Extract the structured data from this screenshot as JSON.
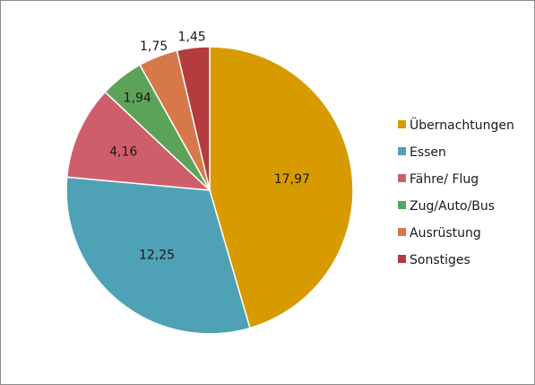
{
  "chart_data": {
    "type": "pie",
    "categories": [
      "Übernachtungen",
      "Essen",
      "Fähre/ Flug",
      "Zug/Auto/Bus",
      "Ausrüstung",
      "Sonstiges"
    ],
    "values": [
      17.97,
      12.25,
      4.16,
      1.94,
      1.75,
      1.45
    ],
    "value_labels": [
      "17,97",
      "12,25",
      "4,16",
      "1,94",
      "1,75",
      "1,45"
    ],
    "colors": [
      "#D79B00",
      "#4FA1B5",
      "#CF5E6B",
      "#5CA359",
      "#D6784A",
      "#B43B3E"
    ],
    "start": "top, clockwise",
    "legend_position": "right"
  }
}
